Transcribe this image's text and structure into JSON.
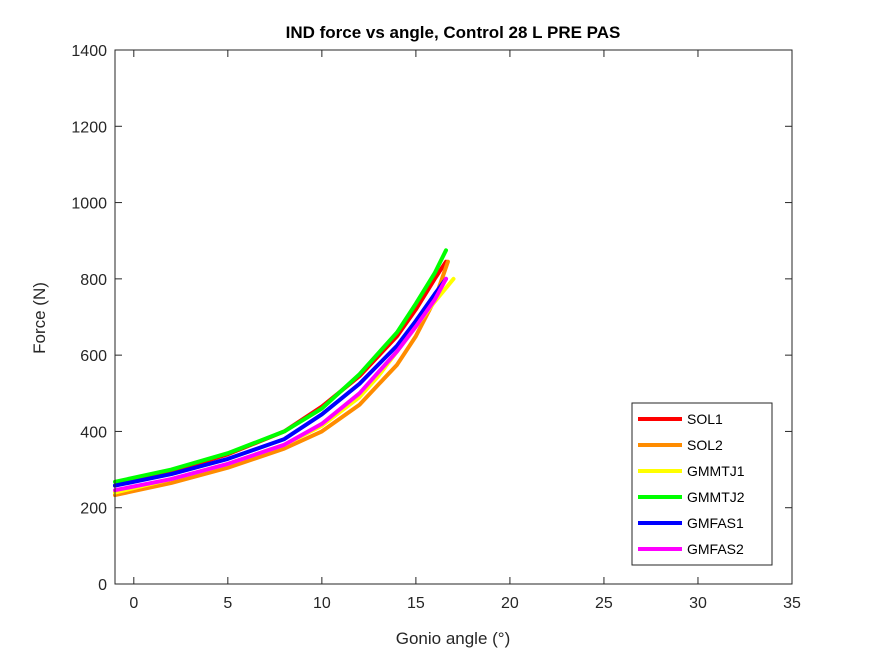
{
  "chart_data": {
    "type": "line",
    "title": "IND force vs angle, Control 28 L PRE PAS",
    "xlabel": "Gonio angle (°)",
    "ylabel": "Force (N)",
    "xlim": [
      -1,
      35
    ],
    "ylim": [
      0,
      1400
    ],
    "xticks": [
      "0",
      "5",
      "10",
      "15",
      "20",
      "25",
      "30",
      "35"
    ],
    "yticks": [
      "0",
      "200",
      "400",
      "600",
      "800",
      "1000",
      "1200",
      "1400"
    ],
    "grid": false,
    "legend_position": "bottom-right",
    "series": [
      {
        "name": "SOL1",
        "color": "#ff0000",
        "x": [
          -1,
          2,
          5,
          8,
          10,
          12,
          14,
          15,
          16,
          16.6
        ],
        "y": [
          258,
          295,
          340,
          400,
          465,
          545,
          650,
          720,
          800,
          845
        ]
      },
      {
        "name": "SOL2",
        "color": "#ff8c00",
        "x": [
          -1,
          2,
          5,
          8,
          10,
          12,
          14,
          15,
          16,
          16.7
        ],
        "y": [
          233,
          265,
          305,
          355,
          400,
          470,
          575,
          650,
          745,
          845
        ]
      },
      {
        "name": "GMMTJ1",
        "color": "#ffff00",
        "x": [
          -1,
          2,
          5,
          8,
          10,
          12,
          13,
          14,
          15,
          16,
          17
        ],
        "y": [
          240,
          275,
          315,
          365,
          415,
          490,
          545,
          610,
          675,
          740,
          800
        ]
      },
      {
        "name": "GMMTJ2",
        "color": "#00ff00",
        "x": [
          -1,
          2,
          5,
          8,
          10,
          12,
          14,
          15,
          16,
          16.6
        ],
        "y": [
          268,
          300,
          343,
          400,
          460,
          550,
          660,
          735,
          815,
          875
        ]
      },
      {
        "name": "GMFAS1",
        "color": "#0000ff",
        "x": [
          -1,
          2,
          5,
          8,
          10,
          12,
          14,
          15,
          16,
          16.6
        ],
        "y": [
          258,
          288,
          328,
          380,
          445,
          525,
          625,
          690,
          760,
          800
        ]
      },
      {
        "name": "GMFAS2",
        "color": "#ff00ff",
        "x": [
          -1,
          2,
          5,
          8,
          10,
          12,
          14,
          15,
          16,
          16.6
        ],
        "y": [
          246,
          275,
          315,
          365,
          420,
          500,
          610,
          675,
          745,
          800
        ]
      }
    ]
  }
}
